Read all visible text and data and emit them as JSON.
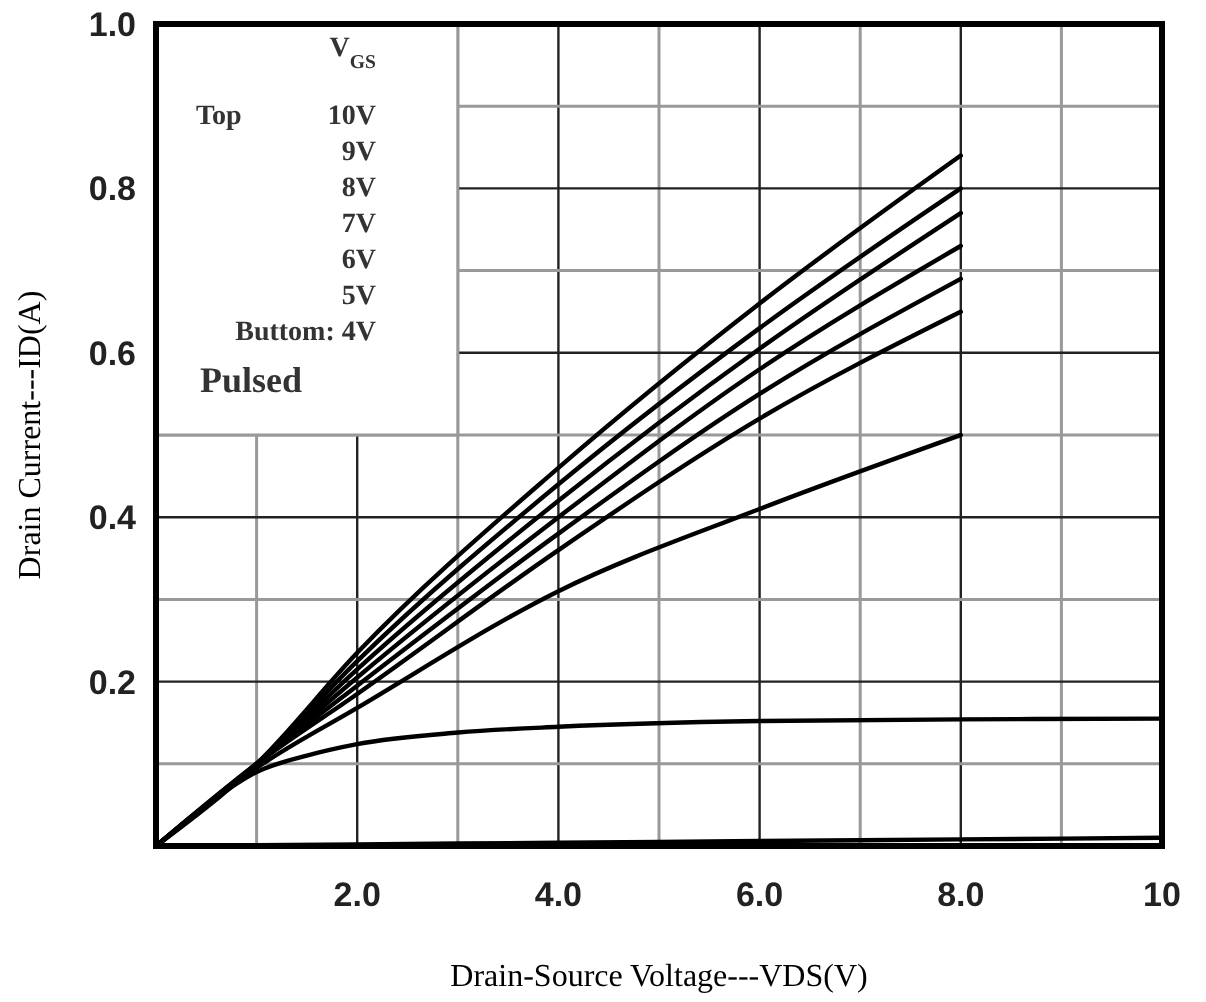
{
  "chart_data": {
    "type": "line",
    "xlabel": "Drain-Source Voltage---VDS(V)",
    "ylabel": "Drain Current---ID(A)",
    "xlim": [
      0,
      10
    ],
    "ylim": [
      0,
      1.0
    ],
    "xticks": [
      {
        "value": 1,
        "label": null
      },
      {
        "value": 2,
        "label": "2.0"
      },
      {
        "value": 3,
        "label": null
      },
      {
        "value": 4,
        "label": "4.0"
      },
      {
        "value": 5,
        "label": null
      },
      {
        "value": 6,
        "label": "6.0"
      },
      {
        "value": 7,
        "label": null
      },
      {
        "value": 8,
        "label": "8.0"
      },
      {
        "value": 9,
        "label": null
      },
      10
    ],
    "yticks": [
      {
        "value": 0.1,
        "label": null
      },
      0.2,
      {
        "value": 0.3,
        "label": null
      },
      0.4,
      {
        "value": 0.5,
        "label": null
      },
      0.6,
      {
        "value": 0.7,
        "label": null
      },
      0.8,
      {
        "value": 0.9,
        "label": null
      },
      {
        "value": 1.0,
        "label": "1.0"
      }
    ],
    "grid": true,
    "line_style": "solid",
    "marker": "none",
    "annotations": [
      "V$_{GS}$",
      "Top",
      "10V",
      "9V",
      "8V",
      "7V",
      "6V",
      "5V",
      "Buttom: 4V",
      "Pulsed"
    ],
    "series": [
      {
        "color": "#000000",
        "x": [
          0,
          1,
          2,
          4,
          6,
          8
        ],
        "values": [
          0,
          0.1,
          0.235,
          0.46,
          0.66,
          0.84
        ]
      },
      {
        "color": "#000000",
        "x": [
          0,
          1,
          2,
          4,
          6,
          8
        ],
        "values": [
          0,
          0.1,
          0.225,
          0.44,
          0.63,
          0.8
        ]
      },
      {
        "color": "#000000",
        "x": [
          0,
          1,
          2,
          4,
          6,
          8
        ],
        "values": [
          0,
          0.1,
          0.215,
          0.42,
          0.605,
          0.77
        ]
      },
      {
        "color": "#000000",
        "x": [
          0,
          1,
          2,
          4,
          6,
          8
        ],
        "values": [
          0,
          0.1,
          0.205,
          0.4,
          0.58,
          0.73
        ]
      },
      {
        "color": "#000000",
        "x": [
          0,
          1,
          2,
          4,
          6,
          8
        ],
        "values": [
          0,
          0.1,
          0.195,
          0.38,
          0.55,
          0.69
        ]
      },
      {
        "color": "#000000",
        "x": [
          0,
          1,
          2,
          4,
          6,
          8
        ],
        "values": [
          0,
          0.1,
          0.185,
          0.36,
          0.52,
          0.65
        ]
      },
      {
        "color": "#000000",
        "x": [
          0,
          1,
          2,
          4,
          6,
          8
        ],
        "values": [
          0,
          0.095,
          0.168,
          0.31,
          0.41,
          0.5
        ]
      },
      {
        "color": "#000000",
        "x": [
          0,
          0.5,
          1,
          1.5,
          2,
          3,
          4,
          6,
          8,
          10
        ],
        "values": [
          0,
          0.05,
          0.09,
          0.11,
          0.124,
          0.138,
          0.145,
          0.152,
          0.154,
          0.155
        ]
      },
      {
        "color": "#000000",
        "x": [
          0,
          2,
          4,
          6,
          8,
          10
        ],
        "values": [
          0,
          0.002,
          0.004,
          0.006,
          0.008,
          0.01
        ]
      }
    ]
  }
}
